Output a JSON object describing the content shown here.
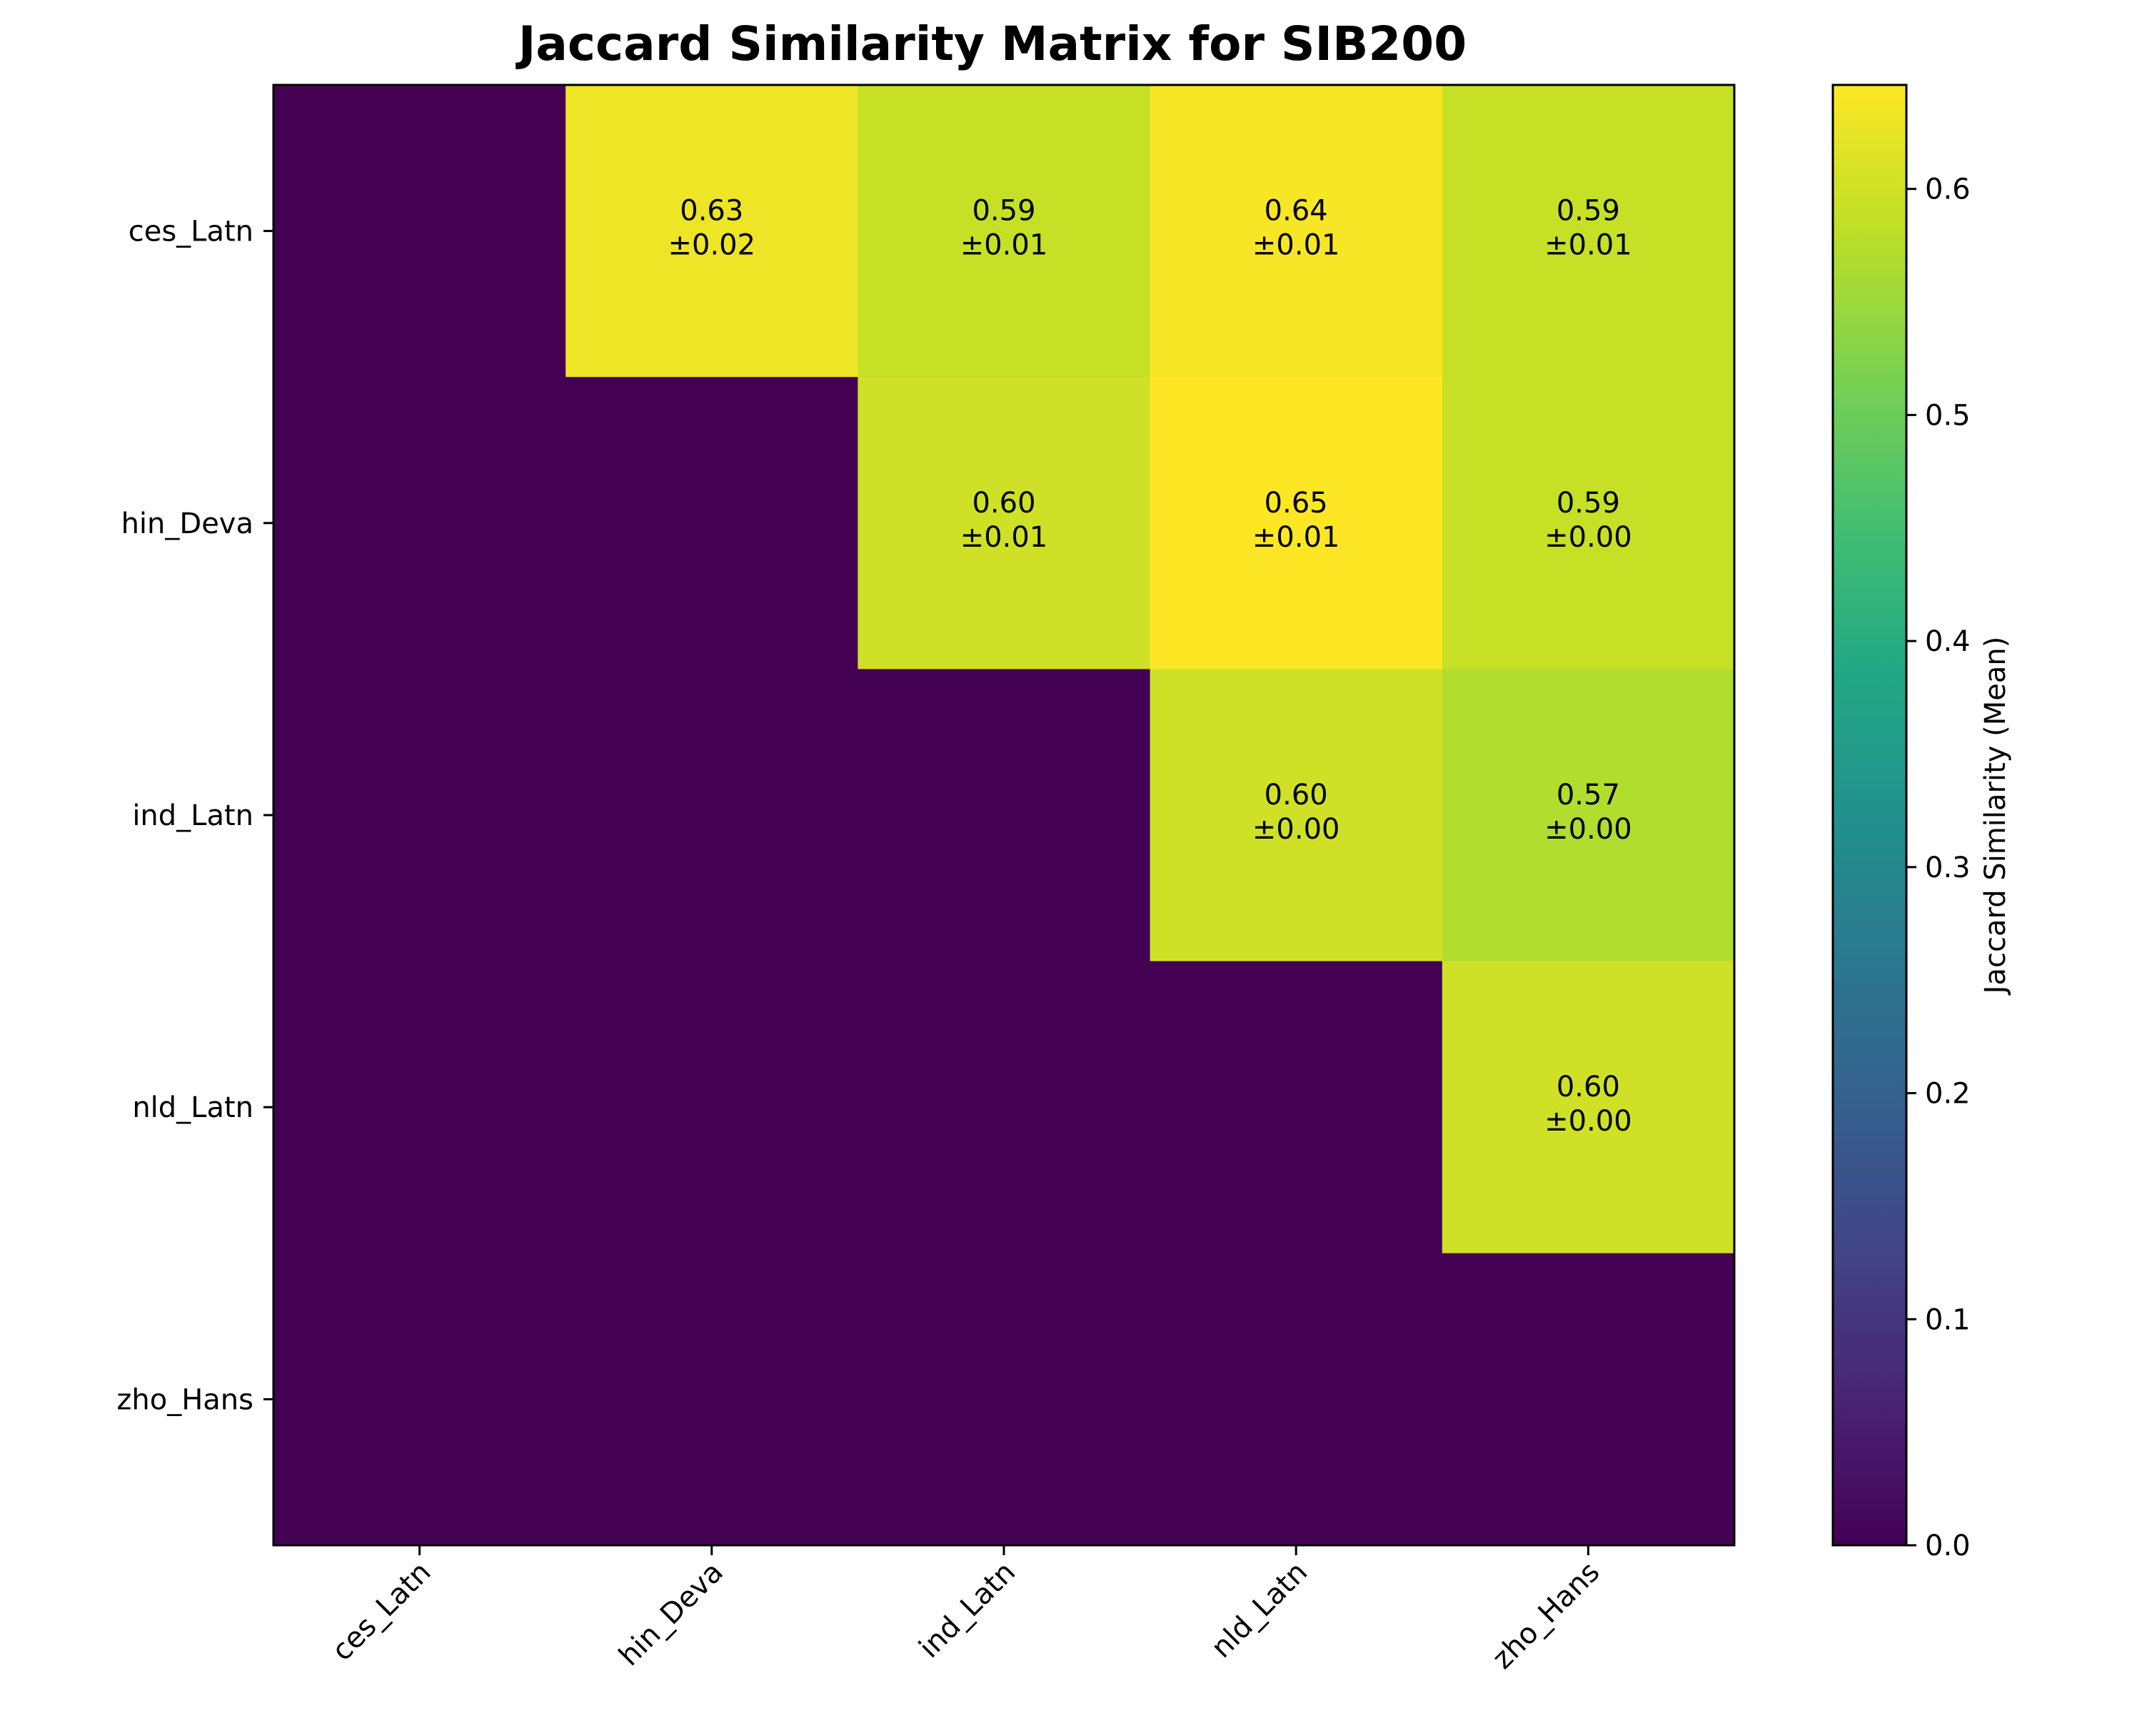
{
  "chart_data": {
    "type": "heatmap",
    "title": "Jaccard Similarity Matrix for SIB200",
    "rows": [
      "ces_Latn",
      "hin_Deva",
      "ind_Latn",
      "nld_Latn",
      "zho_Hans"
    ],
    "cols": [
      "ces_Latn",
      "hin_Deva",
      "ind_Latn",
      "nld_Latn",
      "zho_Hans"
    ],
    "values": [
      [
        0,
        0.63,
        0.59,
        0.64,
        0.59
      ],
      [
        0,
        0,
        0.6,
        0.65,
        0.59
      ],
      [
        0,
        0,
        0,
        0.6,
        0.57
      ],
      [
        0,
        0,
        0,
        0,
        0.6
      ],
      [
        0,
        0,
        0,
        0,
        0
      ]
    ],
    "mean_labels": [
      [
        "",
        "0.63",
        "0.59",
        "0.64",
        "0.59"
      ],
      [
        "",
        "",
        "0.60",
        "0.65",
        "0.59"
      ],
      [
        "",
        "",
        "",
        "0.60",
        "0.57"
      ],
      [
        "",
        "",
        "",
        "",
        "0.60"
      ],
      [
        "",
        "",
        "",
        "",
        ""
      ]
    ],
    "std_labels": [
      [
        "",
        "±0.02",
        "±0.01",
        "±0.01",
        "±0.01"
      ],
      [
        "",
        "",
        "±0.01",
        "±0.01",
        "±0.00"
      ],
      [
        "",
        "",
        "",
        "±0.00",
        "±0.00"
      ],
      [
        "",
        "",
        "",
        "",
        "±0.00"
      ],
      [
        "",
        "",
        "",
        "",
        ""
      ]
    ],
    "colorbar": {
      "label": "Jaccard Similarity (Mean)",
      "min": 0,
      "max": 0.646,
      "ticks": [
        "0.0",
        "0.1",
        "0.2",
        "0.3",
        "0.4",
        "0.5",
        "0.6"
      ],
      "tick_values": [
        0,
        0.1,
        0.2,
        0.3,
        0.4,
        0.5,
        0.6
      ],
      "colormap": "viridis"
    }
  }
}
